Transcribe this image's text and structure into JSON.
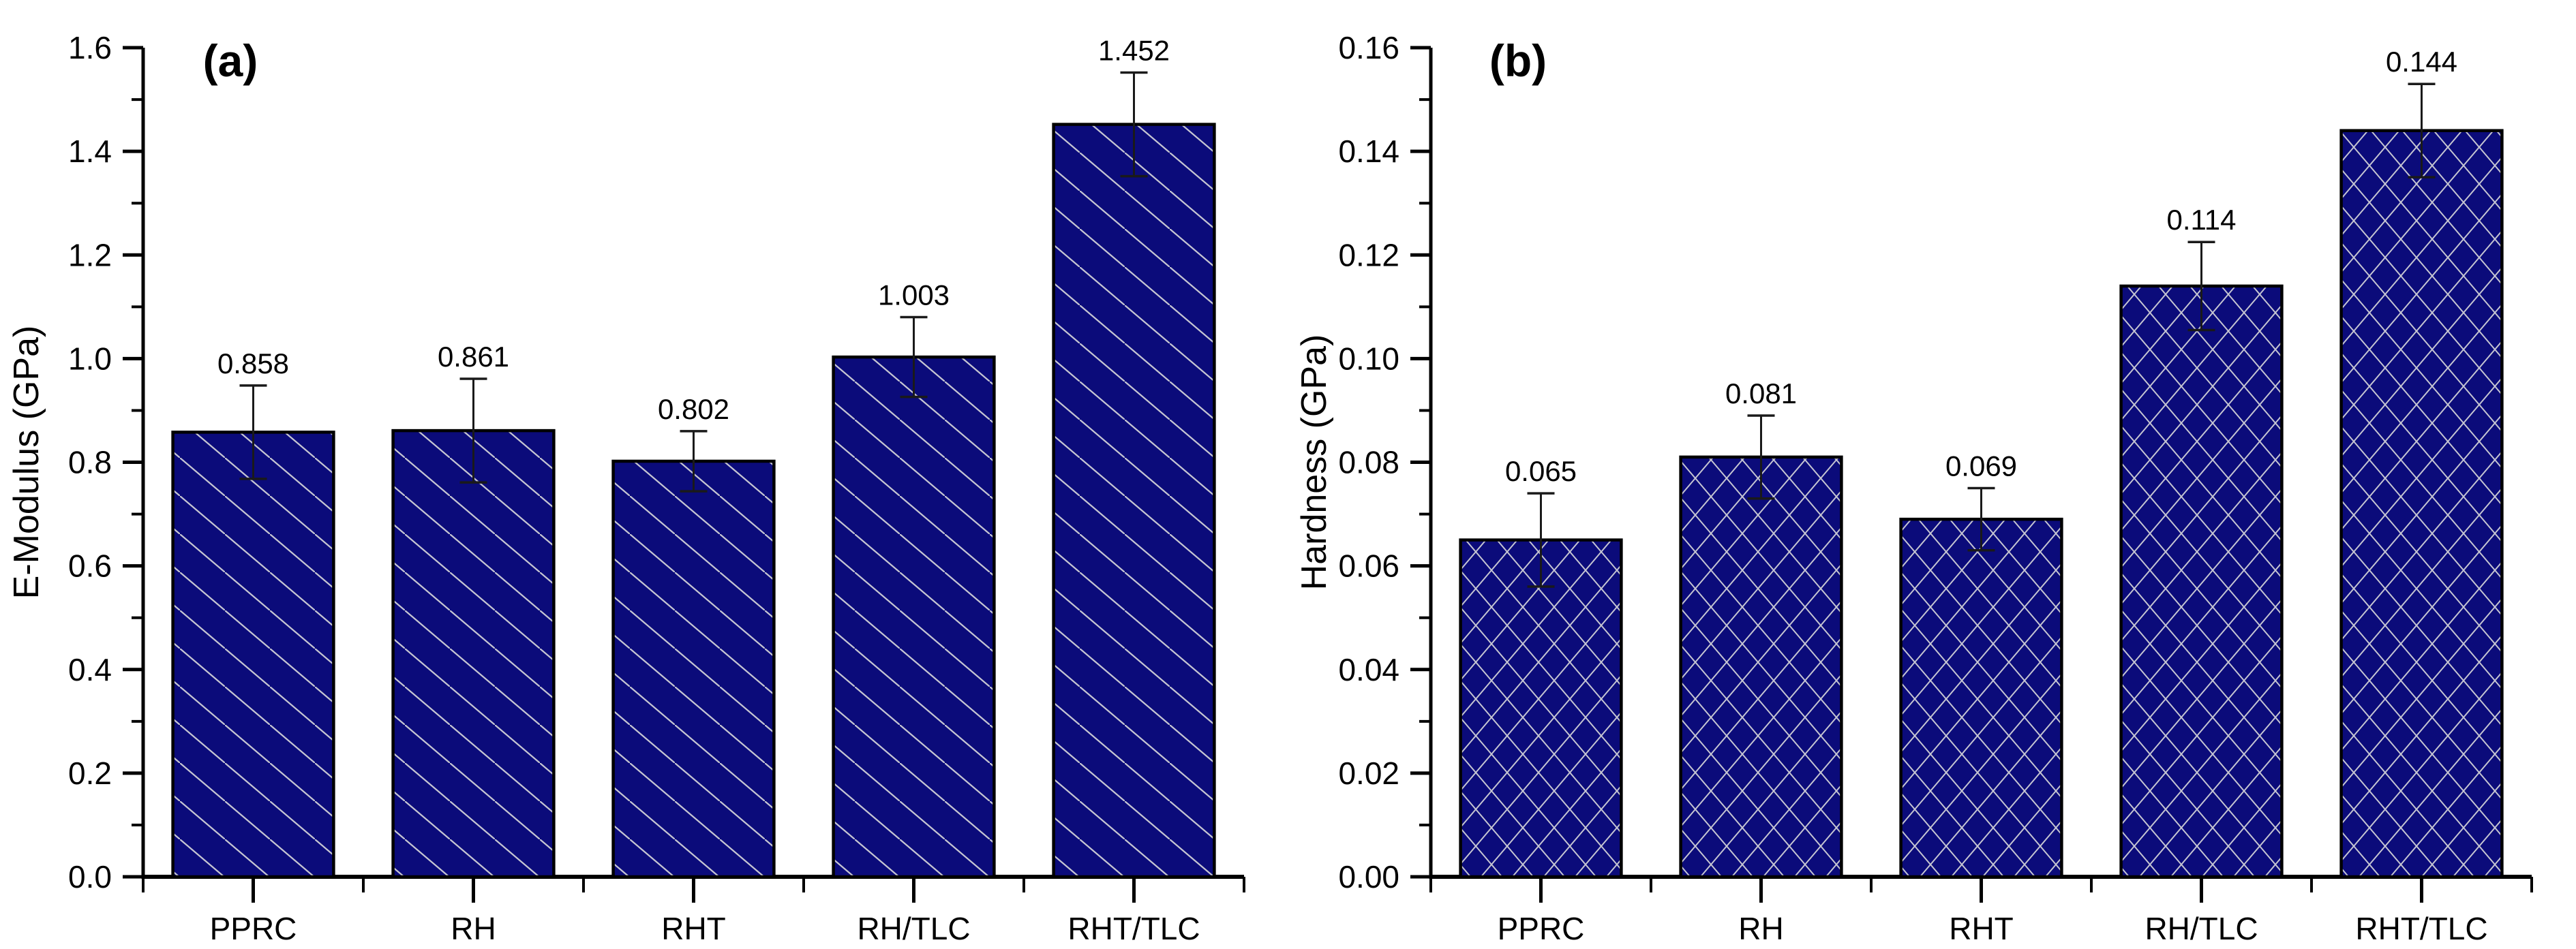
{
  "figure": {
    "background": "#ffffff"
  },
  "colors": {
    "bar_fill": "#0b0b7a",
    "hatch_line": "#c6c6d2",
    "bar_border": "#000000",
    "axis": "#000000",
    "error_bar": "#1a1a1a",
    "text": "#000000"
  },
  "chart_data": [
    {
      "type": "bar",
      "panel_label": "(a)",
      "ylabel": "E-Modulus (GPa)",
      "xlabel": "",
      "categories": [
        "PPRC",
        "RH",
        "RHT",
        "RH/TLC",
        "RHT/TLC"
      ],
      "values": [
        0.858,
        0.861,
        0.802,
        1.003,
        1.452
      ],
      "errors": [
        0.09,
        0.1,
        0.058,
        0.077,
        0.1
      ],
      "value_labels": [
        "0.858",
        "0.861",
        "0.802",
        "1.003",
        "1.452"
      ],
      "ytick_labels": [
        "0.0",
        "0.2",
        "0.4",
        "0.6",
        "0.8",
        "1.0",
        "1.2",
        "1.4",
        "1.6"
      ],
      "ylim": [
        0,
        1.6
      ],
      "y_major_step": 0.2,
      "y_minor_step": 0.1,
      "hatch": "diagonal",
      "grid": false,
      "legend": null
    },
    {
      "type": "bar",
      "panel_label": "(b)",
      "ylabel": "Hardness (GPa)",
      "xlabel": "",
      "categories": [
        "PPRC",
        "RH",
        "RHT",
        "RH/TLC",
        "RHT/TLC"
      ],
      "values": [
        0.065,
        0.081,
        0.069,
        0.114,
        0.144
      ],
      "errors": [
        0.009,
        0.008,
        0.006,
        0.0085,
        0.009
      ],
      "value_labels": [
        "0.065",
        "0.081",
        "0.069",
        "0.114",
        "0.144"
      ],
      "ytick_labels": [
        "0.00",
        "0.02",
        "0.04",
        "0.06",
        "0.08",
        "0.10",
        "0.12",
        "0.14",
        "0.16"
      ],
      "ylim": [
        0,
        0.16
      ],
      "y_major_step": 0.02,
      "y_minor_step": 0.01,
      "hatch": "crosshatch",
      "grid": false,
      "legend": null
    }
  ]
}
